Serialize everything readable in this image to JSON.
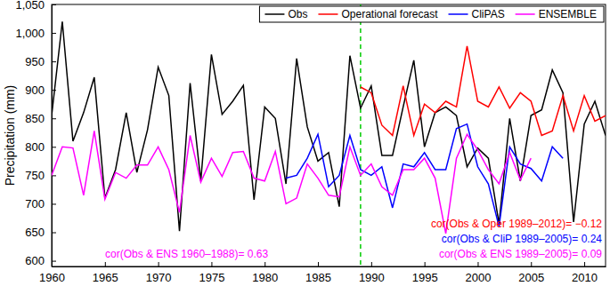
{
  "chart_data": {
    "type": "line",
    "y_label": "Precipitation (mm)",
    "x": [
      1960,
      1961,
      1962,
      1963,
      1964,
      1965,
      1966,
      1967,
      1968,
      1969,
      1970,
      1971,
      1972,
      1973,
      1974,
      1975,
      1976,
      1977,
      1978,
      1979,
      1980,
      1981,
      1982,
      1983,
      1984,
      1985,
      1986,
      1987,
      1988,
      1989,
      1990,
      1991,
      1992,
      1993,
      1994,
      1995,
      1996,
      1997,
      1998,
      1999,
      2000,
      2001,
      2002,
      2003,
      2004,
      2005,
      2006,
      2007,
      2008,
      2009,
      2010,
      2011,
      2012
    ],
    "series": [
      {
        "name": "Obs",
        "color": "#000000",
        "values": [
          855,
          1020,
          810,
          860,
          922,
          710,
          760,
          860,
          755,
          830,
          940,
          890,
          652,
          912,
          740,
          962,
          857,
          880,
          908,
          707,
          870,
          850,
          735,
          955,
          835,
          775,
          790,
          695,
          960,
          868,
          907,
          785,
          785,
          870,
          952,
          800,
          860,
          870,
          855,
          765,
          798,
          780,
          665,
          850,
          740,
          855,
          865,
          935,
          895,
          668,
          840,
          880,
          820
        ]
      },
      {
        "name": "Operational forecast",
        "color": "#ff0000",
        "values": [
          null,
          null,
          null,
          null,
          null,
          null,
          null,
          null,
          null,
          null,
          null,
          null,
          null,
          null,
          null,
          null,
          null,
          null,
          null,
          null,
          null,
          null,
          null,
          null,
          null,
          null,
          null,
          null,
          null,
          905,
          895,
          838,
          820,
          907,
          820,
          875,
          860,
          880,
          870,
          977,
          880,
          870,
          905,
          868,
          895,
          880,
          820,
          828,
          890,
          828,
          890,
          845,
          855
        ]
      },
      {
        "name": "CliPAS",
        "color": "#0000ff",
        "values": [
          null,
          null,
          null,
          null,
          null,
          null,
          null,
          null,
          null,
          null,
          null,
          null,
          null,
          null,
          null,
          null,
          null,
          null,
          null,
          null,
          null,
          null,
          745,
          750,
          780,
          822,
          730,
          750,
          820,
          760,
          750,
          765,
          693,
          770,
          765,
          790,
          760,
          760,
          832,
          840,
          765,
          735,
          660,
          800,
          770,
          762,
          740,
          800,
          780,
          null,
          null,
          null,
          null
        ]
      },
      {
        "name": "ENSEMBLE",
        "color": "#ff00ff",
        "values": [
          750,
          800,
          798,
          715,
          828,
          708,
          755,
          745,
          768,
          768,
          800,
          760,
          685,
          820,
          738,
          780,
          748,
          790,
          792,
          745,
          740,
          792,
          700,
          710,
          770,
          745,
          715,
          712,
          800,
          750,
          770,
          730,
          715,
          760,
          760,
          780,
          745,
          648,
          780,
          822,
          795,
          760,
          735,
          790,
          742,
          780,
          null,
          null,
          null,
          null,
          null,
          null,
          null
        ]
      }
    ],
    "xlim": [
      1960,
      2012
    ],
    "xticks": [
      1960,
      1965,
      1970,
      1975,
      1980,
      1985,
      1990,
      1995,
      2000,
      2005,
      2010
    ],
    "ylim": [
      590,
      1050
    ],
    "yticks": [
      600,
      650,
      700,
      750,
      800,
      850,
      900,
      950,
      {
        "value": 1000,
        "label": "1,000"
      },
      {
        "value": 1050,
        "label": "1,050"
      }
    ],
    "grid": false,
    "legend": "upper right",
    "reference_lines": [
      {
        "x": 1989,
        "color": "#00cc00",
        "line_style": "dashed"
      }
    ],
    "annotations": [
      {
        "text": "cor(Obs & ENS 1960–1988)= 0.63",
        "color": "#ff00ff"
      },
      {
        "text": "cor(Obs & Oper 1989–2012)= −0.12",
        "color": "#ff0000"
      },
      {
        "text": "cor(Obs & CliP  1989–2005)= 0.24",
        "color": "#0000ff"
      },
      {
        "text": "cor(Obs & ENS 1989–2005)= 0.09",
        "color": "#ff00ff"
      }
    ]
  }
}
